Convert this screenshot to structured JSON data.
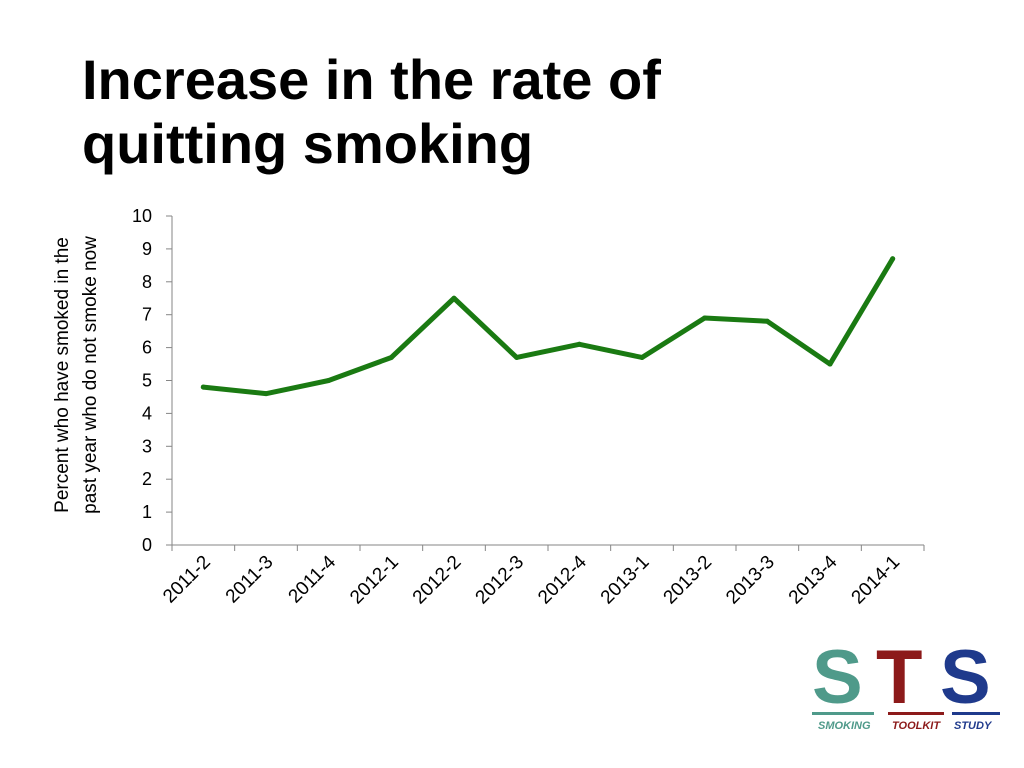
{
  "title": {
    "line1": "Increase in the rate of",
    "line2": "quitting smoking"
  },
  "chart_data": {
    "type": "line",
    "title": "Increase in the rate of quitting smoking",
    "ylabel_line1": "Percent who have smoked in the",
    "ylabel_line2": "past year who do not smoke now",
    "xlabel": "",
    "categories": [
      "2011-2",
      "2011-3",
      "2011-4",
      "2012-1",
      "2012-2",
      "2012-3",
      "2012-4",
      "2013-1",
      "2013-2",
      "2013-3",
      "2013-4",
      "2014-1"
    ],
    "series": [
      {
        "values": [
          4.8,
          4.6,
          5.0,
          5.7,
          7.5,
          5.7,
          6.1,
          5.7,
          6.9,
          6.8,
          5.5,
          8.7
        ]
      }
    ],
    "ylim": [
      0,
      10
    ],
    "yticks": [
      0,
      1,
      2,
      3,
      4,
      5,
      6,
      7,
      8,
      9,
      10
    ],
    "grid": false,
    "legend": "none",
    "line_color": "#1a7a12"
  },
  "logo": {
    "letter_s1": "S",
    "letter_t": "T",
    "letter_s2": "S",
    "word_smoking": "SMOKING",
    "word_toolkit": "TOOLKIT",
    "word_study": "STUDY",
    "colors": {
      "s1": "#4f9a8a",
      "t": "#8c1a1a",
      "s2": "#1f3a8c"
    }
  }
}
